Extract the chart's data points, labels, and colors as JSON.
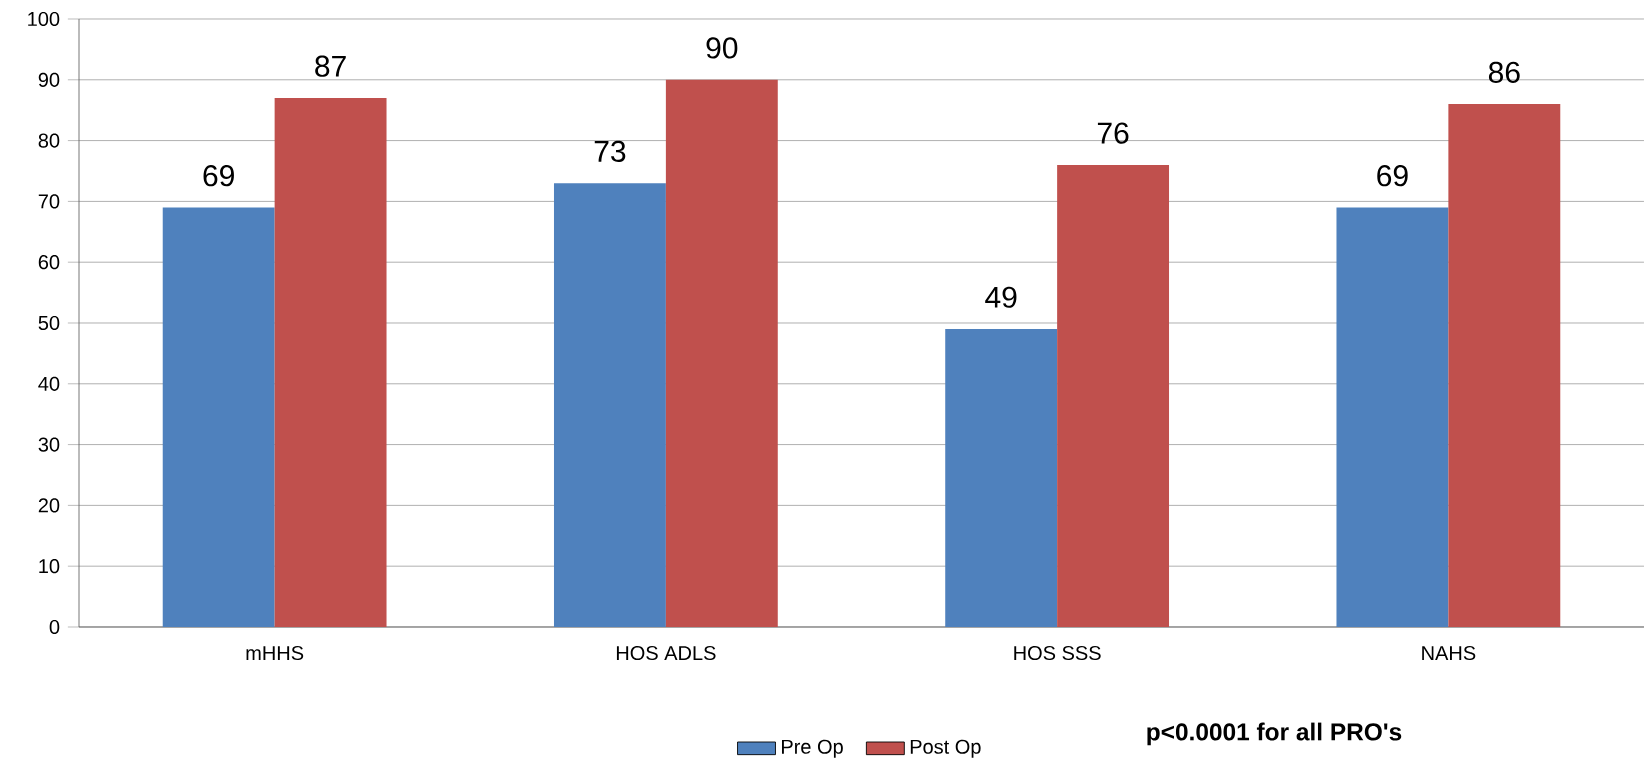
{
  "chart_data": {
    "type": "bar",
    "categories": [
      "mHHS",
      "HOS ADLS",
      "HOS SSS",
      "NAHS"
    ],
    "series": [
      {
        "name": "Pre Op",
        "color": "#4f81bd",
        "values": [
          69,
          73,
          49,
          69
        ]
      },
      {
        "name": "Post Op",
        "color": "#c0504d",
        "values": [
          87,
          90,
          76,
          86
        ]
      }
    ],
    "ylim": [
      0,
      100
    ],
    "yticks": [
      0,
      10,
      20,
      30,
      40,
      50,
      60,
      70,
      80,
      90,
      100
    ],
    "grid": "y",
    "legend": "bottom",
    "data_labels": true,
    "annotations": [
      "**p<0.0001 for all PRO's**"
    ]
  }
}
